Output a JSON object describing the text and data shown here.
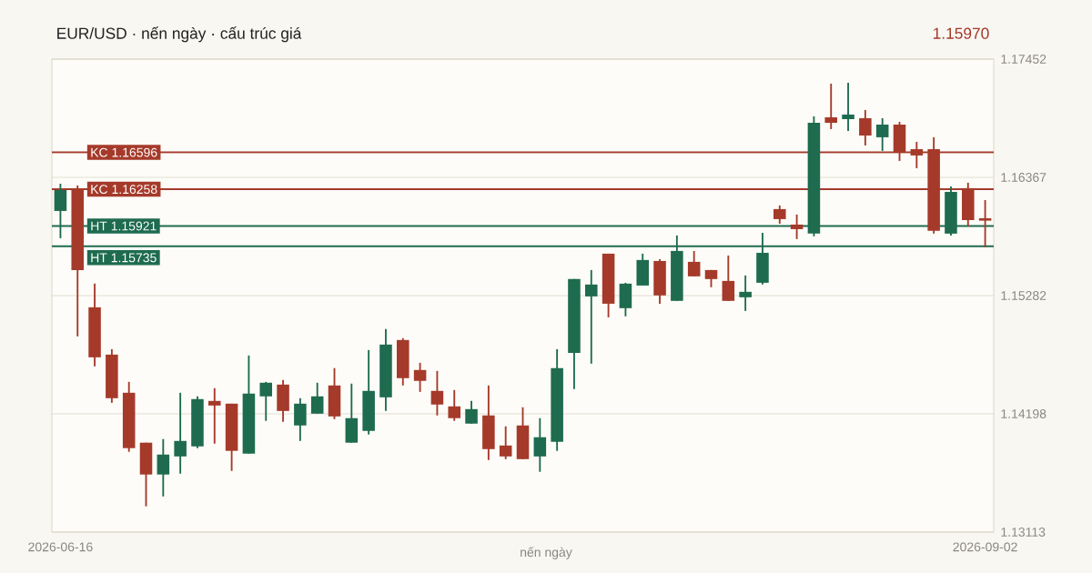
{
  "chart_data": {
    "type": "candlestick",
    "title": "EUR/USD · nến ngày · cấu trúc giá",
    "annotations": [
      "1.15970",
      "nến ngày"
    ],
    "categories": [
      "2026-06-16",
      null,
      null,
      null,
      null,
      null,
      null,
      null,
      null,
      null,
      null,
      null,
      null,
      null,
      null,
      null,
      null,
      null,
      null,
      null,
      null,
      null,
      null,
      null,
      null,
      null,
      null,
      null,
      null,
      null,
      null,
      null,
      null,
      null,
      null,
      null,
      null,
      null,
      null,
      null,
      null,
      null,
      null,
      null,
      null,
      null,
      null,
      null,
      null,
      null,
      null,
      null,
      null,
      null,
      "2026-09-02"
    ],
    "ohlc": [
      [
        1.16059,
        1.16309,
        1.15809,
        1.16251
      ],
      [
        1.16259,
        1.16293,
        1.14908,
        1.15517
      ],
      [
        1.15175,
        1.15392,
        1.14633,
        1.14716
      ],
      [
        1.14741,
        1.14791,
        1.14299,
        1.14341
      ],
      [
        1.14391,
        1.14491,
        1.13849,
        1.13883
      ],
      [
        1.13933,
        1.13933,
        1.13349,
        1.13641
      ],
      [
        1.13641,
        1.13966,
        1.1344,
        1.13824
      ],
      [
        1.13807,
        1.14391,
        1.13649,
        1.13949
      ],
      [
        1.13899,
        1.14358,
        1.13883,
        1.14333
      ],
      [
        1.14316,
        1.14433,
        1.13924,
        1.14274
      ],
      [
        1.14291,
        1.14291,
        1.13674,
        1.13858
      ],
      [
        1.13832,
        1.14733,
        1.13832,
        1.14383
      ],
      [
        1.14358,
        1.14491,
        1.14133,
        1.14483
      ],
      [
        1.14466,
        1.14508,
        1.14124,
        1.14224
      ],
      [
        1.14091,
        1.14341,
        1.13949,
        1.14291
      ],
      [
        1.14199,
        1.14483,
        1.14199,
        1.14358
      ],
      [
        1.14458,
        1.14617,
        1.14149,
        1.14174
      ],
      [
        1.13933,
        1.14475,
        1.13933,
        1.14158
      ],
      [
        1.14041,
        1.14783,
        1.14008,
        1.14408
      ],
      [
        1.14349,
        1.14975,
        1.14224,
        1.14833
      ],
      [
        1.14875,
        1.14892,
        1.14458,
        1.14525
      ],
      [
        1.146,
        1.14666,
        1.14399,
        1.145
      ],
      [
        1.14408,
        1.14591,
        1.14183,
        1.14283
      ],
      [
        1.14266,
        1.14416,
        1.14133,
        1.14158
      ],
      [
        1.14108,
        1.14316,
        1.14108,
        1.14241
      ],
      [
        1.14183,
        1.14458,
        1.13774,
        1.13874
      ],
      [
        1.13907,
        1.14083,
        1.13782,
        1.13807
      ],
      [
        1.14091,
        1.14258,
        1.13782,
        1.13782
      ],
      [
        1.13807,
        1.14158,
        1.13666,
        1.13983
      ],
      [
        1.13941,
        1.14791,
        1.13858,
        1.14617
      ],
      [
        1.14756,
        1.15434,
        1.14424,
        1.15434
      ],
      [
        1.15275,
        1.15517,
        1.14658,
        1.15384
      ],
      [
        1.15667,
        1.15667,
        1.15083,
        1.15208
      ],
      [
        1.15167,
        1.154,
        1.15092,
        1.15392
      ],
      [
        1.15375,
        1.15667,
        1.15375,
        1.15609
      ],
      [
        1.156,
        1.15617,
        1.15208,
        1.15284
      ],
      [
        1.15234,
        1.15834,
        1.15234,
        1.15692
      ],
      [
        1.15592,
        1.15692,
        1.15459,
        1.15459
      ],
      [
        1.15517,
        1.15517,
        1.15359,
        1.15434
      ],
      [
        1.15417,
        1.1565,
        1.15234,
        1.15234
      ],
      [
        1.15267,
        1.15467,
        1.15142,
        1.15317
      ],
      [
        1.154,
        1.15859,
        1.15384,
        1.15675
      ],
      [
        1.16076,
        1.16109,
        1.15942,
        1.15984
      ],
      [
        1.15934,
        1.16026,
        1.15801,
        1.15892
      ],
      [
        1.15851,
        1.16927,
        1.15826,
        1.16868
      ],
      [
        1.16918,
        1.17227,
        1.1681,
        1.16868
      ],
      [
        1.16901,
        1.17235,
        1.16793,
        1.16943
      ],
      [
        1.1691,
        1.16985,
        1.1666,
        1.16751
      ],
      [
        1.16735,
        1.1691,
        1.1661,
        1.16851
      ],
      [
        1.16851,
        1.16876,
        1.16518,
        1.16593
      ],
      [
        1.16626,
        1.16693,
        1.16451,
        1.16568
      ],
      [
        1.16626,
        1.16735,
        1.15851,
        1.15876
      ],
      [
        1.15851,
        1.16284,
        1.15834,
        1.16234
      ],
      [
        1.16268,
        1.16318,
        1.15917,
        1.15975
      ],
      [
        1.15992,
        1.16159,
        1.15726,
        1.1597
      ]
    ],
    "colors": [
      "#1e6b50",
      "#a53a2a",
      "#a53a2a",
      "#a53a2a",
      "#a53a2a",
      "#a53a2a",
      "#1e6b50",
      "#1e6b50",
      "#1e6b50",
      "#a53a2a",
      "#a53a2a",
      "#1e6b50",
      "#1e6b50",
      "#a53a2a",
      "#1e6b50",
      "#1e6b50",
      "#a53a2a",
      "#1e6b50",
      "#1e6b50",
      "#1e6b50",
      "#a53a2a",
      "#a53a2a",
      "#a53a2a",
      "#a53a2a",
      "#1e6b50",
      "#a53a2a",
      "#a53a2a",
      "#a53a2a",
      "#1e6b50",
      "#1e6b50",
      "#1e6b50",
      "#1e6b50",
      "#a53a2a",
      "#1e6b50",
      "#1e6b50",
      "#a53a2a",
      "#1e6b50",
      "#a53a2a",
      "#a53a2a",
      "#a53a2a",
      "#1e6b50",
      "#1e6b50",
      "#a53a2a",
      "#a53a2a",
      "#1e6b50",
      "#a53a2a",
      "#1e6b50",
      "#a53a2a",
      "#1e6b50",
      "#a53a2a",
      "#a53a2a",
      "#a53a2a",
      "#1e6b50",
      "#a53a2a",
      "#a53a2a"
    ],
    "ylim": [
      1.13113,
      1.17452
    ],
    "yticks": [
      1.13113,
      1.14198,
      1.15282,
      1.16367,
      1.17452
    ],
    "grid": "y",
    "ref_lines": [
      {
        "axis": "y",
        "value": 1.16596,
        "label": "KC 1.16596",
        "color": "#a53a2a"
      },
      {
        "axis": "y",
        "value": 1.16258,
        "label": "KC 1.16258",
        "color": "#a53a2a"
      },
      {
        "axis": "y",
        "value": 1.15921,
        "label": "HT 1.15921",
        "color": "#1e6b50"
      },
      {
        "axis": "y",
        "value": 1.15735,
        "label": "HT 1.15735",
        "color": "#1e6b50"
      }
    ]
  }
}
